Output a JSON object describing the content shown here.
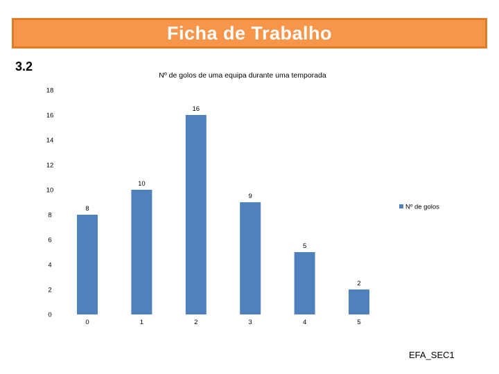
{
  "header": {
    "title": "Ficha de Trabalho"
  },
  "section": {
    "number": "3.2"
  },
  "footer": {
    "code": "EFA_SEC1"
  },
  "colors": {
    "title_bg": "#f7964a",
    "title_border": "#e07a24",
    "bar": "#4f81bd"
  },
  "chart_data": {
    "type": "bar",
    "title": "Nº de golos de uma equipa durante uma temporada",
    "categories": [
      "0",
      "1",
      "2",
      "3",
      "4",
      "5"
    ],
    "series": [
      {
        "name": "Nº de golos",
        "values": [
          8,
          10,
          16,
          9,
          5,
          2
        ]
      }
    ],
    "ylim": [
      0,
      18
    ],
    "yticks": [
      0,
      2,
      4,
      6,
      8,
      10,
      12,
      14,
      16,
      18
    ],
    "data_labels": true,
    "legend_position": "right",
    "grid": false
  }
}
